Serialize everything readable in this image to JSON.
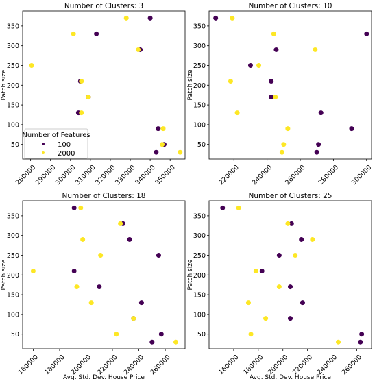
{
  "figure": {
    "legend": {
      "title": "Number of Features",
      "entries": [
        "100",
        "2000"
      ]
    },
    "colors": {
      "features_100": "#440154",
      "features_2000": "#fde725"
    }
  },
  "chart_data": [
    {
      "type": "scatter",
      "title": "Number of Clusters: 3",
      "xlabel": "",
      "ylabel": "Patch size",
      "xlim": [
        276000,
        357500
      ],
      "ylim": [
        13,
        388
      ],
      "xticks": [
        280000,
        290000,
        300000,
        310000,
        320000,
        330000,
        340000,
        350000
      ],
      "yticks": [
        50,
        100,
        150,
        200,
        250,
        300,
        350
      ],
      "legend_position": "lower-left",
      "series": [
        {
          "name": "100",
          "color": "#440154",
          "points": [
            [
              340000,
              370
            ],
            [
              313000,
              330
            ],
            [
              335000,
              290
            ],
            [
              304000,
              130
            ],
            [
              344000,
              90
            ],
            [
              347000,
              50
            ],
            [
              343000,
              30
            ],
            [
              305000,
              210
            ],
            [
              309000,
              170
            ]
          ]
        },
        {
          "name": "2000",
          "color": "#fde725",
          "points": [
            [
              328000,
              370
            ],
            [
              301500,
              330
            ],
            [
              334000,
              290
            ],
            [
              280500,
              250
            ],
            [
              305500,
              210
            ],
            [
              309000,
              170
            ],
            [
              305500,
              130
            ],
            [
              346500,
              90
            ],
            [
              346000,
              50
            ],
            [
              355000,
              30
            ]
          ]
        }
      ]
    },
    {
      "type": "scatter",
      "title": "Number of Clusters: 10",
      "xlabel": "",
      "ylabel": "Patch size",
      "xlim": [
        205000,
        303000
      ],
      "ylim": [
        13,
        388
      ],
      "xticks": [
        220000,
        240000,
        260000,
        280000,
        300000
      ],
      "yticks": [
        50,
        100,
        150,
        200,
        250,
        300,
        350
      ],
      "legend_position": "",
      "series": [
        {
          "name": "100",
          "color": "#440154",
          "points": [
            [
              209000,
              370
            ],
            [
              300000,
              330
            ],
            [
              245500,
              290
            ],
            [
              230000,
              250
            ],
            [
              242500,
              210
            ],
            [
              242500,
              170
            ],
            [
              272500,
              130
            ],
            [
              291000,
              90
            ],
            [
              271000,
              50
            ],
            [
              270000,
              30
            ]
          ]
        },
        {
          "name": "2000",
          "color": "#fde725",
          "points": [
            [
              219000,
              370
            ],
            [
              244000,
              330
            ],
            [
              269000,
              290
            ],
            [
              235000,
              250
            ],
            [
              218000,
              210
            ],
            [
              245000,
              170
            ],
            [
              222000,
              130
            ],
            [
              252500,
              90
            ],
            [
              250000,
              50
            ],
            [
              249000,
              30
            ]
          ]
        }
      ]
    },
    {
      "type": "scatter",
      "title": "Number of Clusters: 18",
      "xlabel": "Avg. Std. Dev. House Price",
      "ylabel": "Patch size",
      "xlim": [
        152000,
        275000
      ],
      "ylim": [
        13,
        388
      ],
      "xticks": [
        160000,
        180000,
        200000,
        220000,
        240000,
        260000
      ],
      "yticks": [
        50,
        100,
        150,
        200,
        250,
        300,
        350
      ],
      "legend_position": "",
      "series": [
        {
          "name": "100",
          "color": "#440154",
          "points": [
            [
              191000,
              370
            ],
            [
              228000,
              330
            ],
            [
              233000,
              290
            ],
            [
              255000,
              250
            ],
            [
              191000,
              210
            ],
            [
              210000,
              170
            ],
            [
              242000,
              130
            ],
            [
              236000,
              90
            ],
            [
              257000,
              50
            ],
            [
              250000,
              30
            ]
          ]
        },
        {
          "name": "2000",
          "color": "#fde725",
          "points": [
            [
              196000,
              370
            ],
            [
              226000,
              330
            ],
            [
              197500,
              290
            ],
            [
              211000,
              250
            ],
            [
              160000,
              210
            ],
            [
              193000,
              170
            ],
            [
              204000,
              130
            ],
            [
              236000,
              90
            ],
            [
              223000,
              50
            ],
            [
              268000,
              30
            ]
          ]
        }
      ]
    },
    {
      "type": "scatter",
      "title": "Number of Clusters: 25",
      "xlabel": "Avg. Std. Dev. House Price",
      "ylabel": "Patch size",
      "xlim": [
        140000,
        272000
      ],
      "ylim": [
        13,
        388
      ],
      "xticks": [
        160000,
        180000,
        200000,
        220000,
        240000,
        260000
      ],
      "yticks": [
        50,
        100,
        150,
        200,
        250,
        300,
        350
      ],
      "legend_position": "",
      "series": [
        {
          "name": "100",
          "color": "#440154",
          "points": [
            [
              151000,
              370
            ],
            [
              207000,
              330
            ],
            [
              215000,
              290
            ],
            [
              197000,
              250
            ],
            [
              183000,
              210
            ],
            [
              206000,
              170
            ],
            [
              216000,
              130
            ],
            [
              206000,
              90
            ],
            [
              264000,
              50
            ],
            [
              263000,
              30
            ]
          ]
        },
        {
          "name": "2000",
          "color": "#fde725",
          "points": [
            [
              164000,
              370
            ],
            [
              204000,
              330
            ],
            [
              224000,
              290
            ],
            [
              210000,
              250
            ],
            [
              178000,
              210
            ],
            [
              197000,
              170
            ],
            [
              172000,
              130
            ],
            [
              186000,
              90
            ],
            [
              174000,
              50
            ],
            [
              245000,
              30
            ]
          ]
        }
      ]
    }
  ]
}
